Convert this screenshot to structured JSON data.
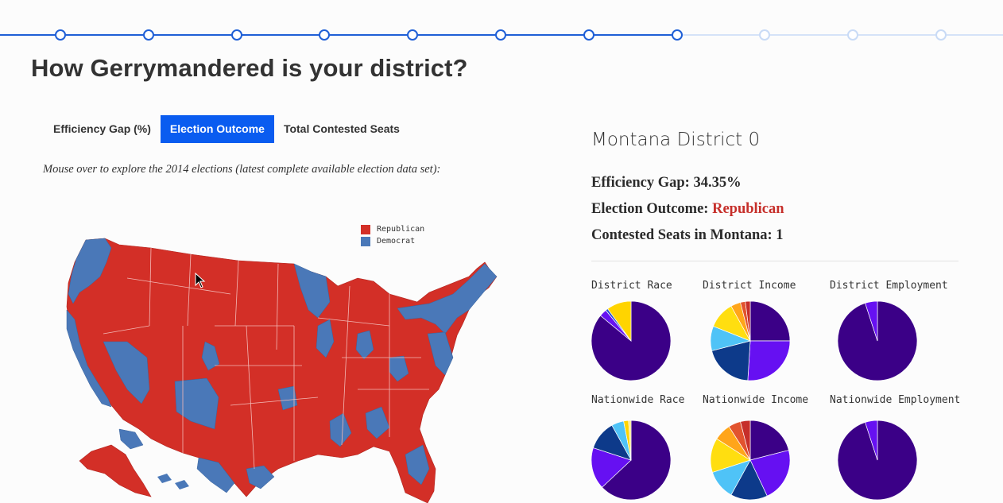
{
  "stepper": {
    "steps_total": 11,
    "current_step": 8
  },
  "page": {
    "title": "How Gerrymandered is your district?"
  },
  "tabs": [
    {
      "label": "Efficiency Gap (%)",
      "active": false
    },
    {
      "label": "Election Outcome",
      "active": true
    },
    {
      "label": "Total Contested Seats",
      "active": false
    }
  ],
  "hint": "Mouse over to explore the 2014 elections (latest complete available election data set):",
  "legend": {
    "republican": {
      "label": "Republican",
      "color": "#d32f27"
    },
    "democrat": {
      "label": "Democrat",
      "color": "#4a78b8"
    }
  },
  "details": {
    "district_name": "Montana District 0",
    "efficiency_gap_label": "Efficiency Gap: 34.35%",
    "outcome_label": "Election Outcome: ",
    "outcome_value": "Republican",
    "contested_label": "Contested Seats in Montana: 1"
  },
  "colors": {
    "outcome_republican": "#c62f2a",
    "accent": "#0a5cf0",
    "progress": "#1f5fd6"
  },
  "chart_data": [
    {
      "type": "pie",
      "title": "District Race",
      "values": [
        0.86,
        0.03,
        0.01,
        0.1
      ],
      "colors": [
        "#3b0087",
        "#6610f2",
        "#2a4fcf",
        "#ffd400"
      ]
    },
    {
      "type": "pie",
      "title": "District Income",
      "values": [
        0.25,
        0.26,
        0.2,
        0.1,
        0.11,
        0.04,
        0.02,
        0.02
      ],
      "colors": [
        "#3b0087",
        "#6610f2",
        "#0d3a8a",
        "#4fc3f7",
        "#ffde10",
        "#ffa51a",
        "#e2532e",
        "#c62f2a"
      ]
    },
    {
      "type": "pie",
      "title": "District Employment",
      "values": [
        0.95,
        0.05
      ],
      "colors": [
        "#3b0087",
        "#6610f2"
      ]
    },
    {
      "type": "pie",
      "title": "Nationwide Race",
      "values": [
        0.63,
        0.17,
        0.12,
        0.05,
        0.02,
        0.01
      ],
      "colors": [
        "#3b0087",
        "#6610f2",
        "#0d3a8a",
        "#4fc3f7",
        "#ffd400",
        "#ffe880"
      ]
    },
    {
      "type": "pie",
      "title": "Nationwide Income",
      "values": [
        0.21,
        0.22,
        0.15,
        0.12,
        0.14,
        0.07,
        0.05,
        0.04
      ],
      "colors": [
        "#3b0087",
        "#6610f2",
        "#0d3a8a",
        "#4fc3f7",
        "#ffde10",
        "#ffa51a",
        "#e2532e",
        "#c62f2a"
      ]
    },
    {
      "type": "pie",
      "title": "Nationwide Employment",
      "values": [
        0.95,
        0.05
      ],
      "colors": [
        "#3b0087",
        "#6610f2"
      ]
    }
  ]
}
